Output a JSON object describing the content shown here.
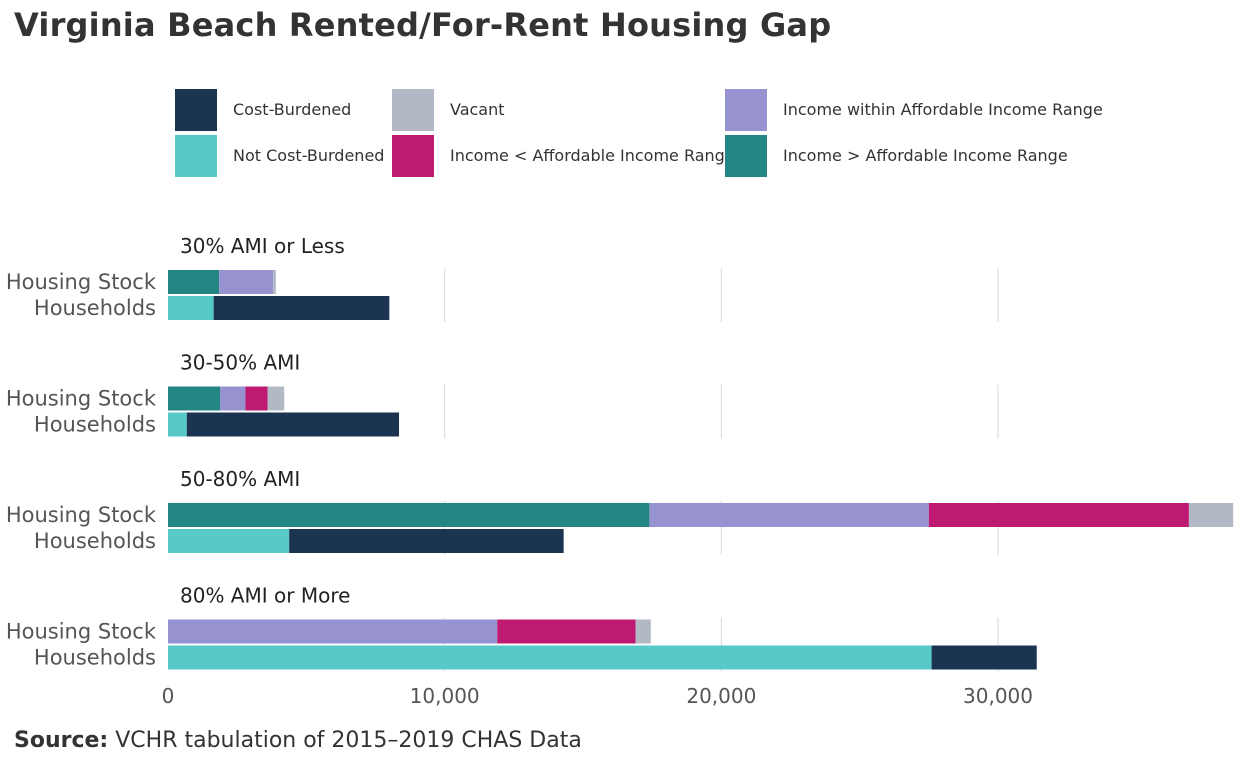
{
  "title": "Virginia Beach Rented/For-Rent Housing Gap",
  "source": {
    "label": "Source:",
    "text": "VCHR tabulation of 2015–2019 CHAS Data"
  },
  "colors": {
    "Cost-Burdened": "#1b3452",
    "Not Cost-Burdened": "#57c9c8",
    "Vacant": "#b3b9c4",
    "Income < Affordable Income Range": "#be1a71",
    "Income within Affordable Income Range": "#9693d0",
    "Income > Affordable Income Range": "#238683"
  },
  "chart_data": {
    "type": "bar",
    "orientation": "horizontal",
    "stacked": true,
    "title": "Virginia Beach Rented/For-Rent Housing Gap",
    "xlim": [
      0,
      38500
    ],
    "xticks": [
      0,
      10000,
      20000,
      30000
    ],
    "xtick_labels": [
      "0",
      "10,000",
      "20,000",
      "30,000"
    ],
    "grid": "vertical",
    "legend": [
      "Cost-Burdened",
      "Not Cost-Burdened",
      "Vacant",
      "Income < Affordable Income Range",
      "Income within Affordable Income Range",
      "Income > Affordable Income Range"
    ],
    "legend_position": "top",
    "groups": [
      {
        "label": "30% AMI or Less",
        "rows": [
          {
            "label": "Housing Stock",
            "segments": [
              {
                "series": "Income > Affordable Income Range",
                "value": 1850
              },
              {
                "series": "Income within Affordable Income Range",
                "value": 1950
              },
              {
                "series": "Vacant",
                "value": 100
              }
            ]
          },
          {
            "label": "Households",
            "segments": [
              {
                "series": "Not Cost-Burdened",
                "value": 1650
              },
              {
                "series": "Cost-Burdened",
                "value": 6350
              }
            ]
          }
        ]
      },
      {
        "label": "30-50% AMI",
        "rows": [
          {
            "label": "Housing Stock",
            "segments": [
              {
                "series": "Income > Affordable Income Range",
                "value": 1880
              },
              {
                "series": "Income within Affordable Income Range",
                "value": 920
              },
              {
                "series": "Income < Affordable Income Range",
                "value": 800
              },
              {
                "series": "Vacant",
                "value": 600
              }
            ]
          },
          {
            "label": "Households",
            "segments": [
              {
                "series": "Not Cost-Burdened",
                "value": 680
              },
              {
                "series": "Cost-Burdened",
                "value": 7670
              }
            ]
          }
        ]
      },
      {
        "label": "50-80% AMI",
        "rows": [
          {
            "label": "Housing Stock",
            "segments": [
              {
                "series": "Income > Affordable Income Range",
                "value": 17400
              },
              {
                "series": "Income within Affordable Income Range",
                "value": 10100
              },
              {
                "series": "Income < Affordable Income Range",
                "value": 9400
              },
              {
                "series": "Vacant",
                "value": 1600
              }
            ]
          },
          {
            "label": "Households",
            "segments": [
              {
                "series": "Not Cost-Burdened",
                "value": 4380
              },
              {
                "series": "Cost-Burdened",
                "value": 9920
              }
            ]
          }
        ]
      },
      {
        "label": "80% AMI or More",
        "rows": [
          {
            "label": "Housing Stock",
            "segments": [
              {
                "series": "Income within Affordable Income Range",
                "value": 11900
              },
              {
                "series": "Income < Affordable Income Range",
                "value": 5000
              },
              {
                "series": "Vacant",
                "value": 550
              }
            ]
          },
          {
            "label": "Households",
            "segments": [
              {
                "series": "Not Cost-Burdened",
                "value": 27600
              },
              {
                "series": "Cost-Burdened",
                "value": 3800
              }
            ]
          }
        ]
      }
    ]
  }
}
